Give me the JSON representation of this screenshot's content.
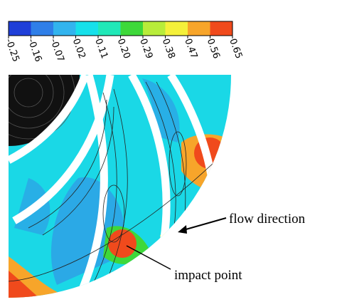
{
  "colorbar": {
    "colors": [
      "#1f3fd8",
      "#2f7fe8",
      "#32b4ee",
      "#16e0ea",
      "#20e8b8",
      "#3ed83a",
      "#b8ec3a",
      "#f4f03a",
      "#f7a52a",
      "#f04a1c"
    ],
    "tick_labels": [
      "-0.25",
      "-0.16",
      "-0.07",
      "0.02",
      "0.11",
      "0.20",
      "0.29",
      "0.38",
      "0.47",
      "0.56",
      "0.65"
    ]
  },
  "annotations": {
    "flow_direction": "flow direction",
    "impact_point": "impact point"
  }
}
